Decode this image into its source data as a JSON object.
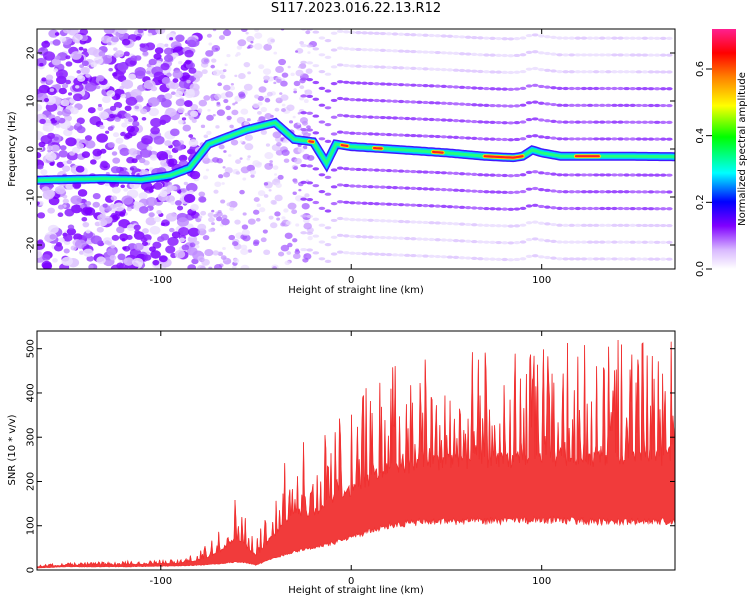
{
  "title": "S117.2023.016.22.13.R12",
  "chart_data": [
    {
      "type": "heatmap",
      "xlabel": "Height of straight line (km)",
      "ylabel": "Frequency (Hz)",
      "xlim": [
        -165,
        170
      ],
      "ylim": [
        -25,
        25
      ],
      "xticks": [
        -100,
        0,
        100
      ],
      "yticks": [
        -20,
        -10,
        0,
        10,
        20
      ],
      "colorbar": {
        "label": "Normalized spectral amplitude",
        "range": [
          0.0,
          0.72
        ],
        "ticks": [
          0.0,
          0.2,
          0.4,
          0.6
        ],
        "colormap": [
          "#ffffff",
          "#d0a8ff",
          "#7a00ff",
          "#0000ff",
          "#00ffff",
          "#00ff00",
          "#ffff00",
          "#ff8000",
          "#ff0000",
          "#ff00a0"
        ]
      },
      "ridge": {
        "description_points_km_hz": [
          [
            -165,
            -6.5
          ],
          [
            -130,
            -6.2
          ],
          [
            -110,
            -6.4
          ],
          [
            -95,
            -5.5
          ],
          [
            -85,
            -4
          ],
          [
            -75,
            1
          ],
          [
            -65,
            2.5
          ],
          [
            -55,
            4
          ],
          [
            -40,
            5.5
          ],
          [
            -30,
            2
          ],
          [
            -20,
            1.5
          ],
          [
            -13,
            -3
          ],
          [
            -8,
            1
          ],
          [
            0,
            0.5
          ],
          [
            20,
            0
          ],
          [
            50,
            -0.8
          ],
          [
            70,
            -1.5
          ],
          [
            85,
            -1.8
          ],
          [
            90,
            -1.5
          ],
          [
            95,
            -0.2
          ],
          [
            100,
            -0.8
          ],
          [
            110,
            -1.5
          ],
          [
            140,
            -1.5
          ],
          [
            170,
            -1.6
          ]
        ],
        "peak_color_segments_km": [
          [
            -22,
            -20
          ],
          [
            -5,
            -2
          ],
          [
            12,
            16
          ],
          [
            43,
            48
          ],
          [
            70,
            90
          ],
          [
            118,
            130
          ]
        ]
      }
    },
    {
      "type": "area",
      "xlabel": "Height of straight line (km)",
      "ylabel": "SNR (10 * v/v)",
      "xlim": [
        -165,
        170
      ],
      "ylim": [
        0,
        540
      ],
      "xticks": [
        -100,
        0,
        100
      ],
      "yticks": [
        0,
        100,
        200,
        300,
        400,
        500
      ],
      "color": "#f03030",
      "envelope_km": [
        -165,
        -150,
        -120,
        -90,
        -80,
        -70,
        -60,
        -55,
        -50,
        -40,
        -30,
        -20,
        -10,
        0,
        20,
        40,
        60,
        80,
        100,
        120,
        140,
        170
      ],
      "lower_snr": [
        5,
        8,
        8,
        10,
        12,
        15,
        20,
        18,
        12,
        30,
        45,
        55,
        65,
        80,
        110,
        118,
        120,
        120,
        122,
        120,
        118,
        118
      ],
      "upper_snr": [
        12,
        16,
        20,
        25,
        40,
        90,
        180,
        120,
        70,
        190,
        310,
        270,
        350,
        380,
        470,
        490,
        500,
        505,
        510,
        515,
        520,
        530
      ]
    }
  ]
}
